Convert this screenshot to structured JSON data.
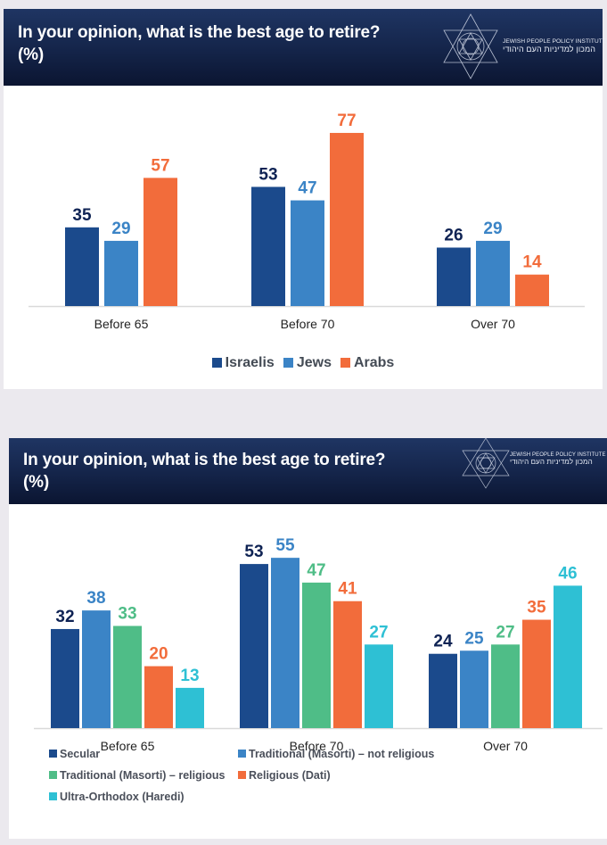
{
  "logo": {
    "name_en": "JEWISH PEOPLE POLICY INSTITUTE",
    "name_he": "המכון למדיניות העם היהודי"
  },
  "chart_data": [
    {
      "type": "bar",
      "title": "In your opinion, what is the best age to retire? (%)",
      "title_line1": "In your opinion, what is the best age to retire?",
      "title_line2": "(%)",
      "xlabel": "",
      "ylabel": "",
      "ylim": [
        0,
        77
      ],
      "grid": false,
      "legend_position": "bottom",
      "categories": [
        "Before 65",
        "Before 70",
        "Over 70"
      ],
      "series": [
        {
          "name": "Israelis",
          "color": "#1b4a8c",
          "label_color": "#0f2354",
          "values": [
            35,
            53,
            26
          ]
        },
        {
          "name": "Jews",
          "color": "#3b84c6",
          "label_color": "#3b84c6",
          "values": [
            29,
            47,
            29
          ]
        },
        {
          "name": "Arabs",
          "color": "#f26c3b",
          "label_color": "#f26c3b",
          "values": [
            57,
            77,
            14
          ]
        }
      ]
    },
    {
      "type": "bar",
      "title": "In your opinion, what is the best age to retire? (%)",
      "title_line1": "In your opinion, what is the best age to retire?",
      "title_line2": "(%)",
      "xlabel": "",
      "ylabel": "",
      "ylim": [
        0,
        55
      ],
      "grid": false,
      "legend_position": "bottom",
      "categories": [
        "Before 65",
        "Before 70",
        "Over 70"
      ],
      "series": [
        {
          "name": "Secular",
          "color": "#1b4a8c",
          "label_color": "#0f2354",
          "values": [
            32,
            53,
            24
          ]
        },
        {
          "name": "Traditional (Masorti) – not religious",
          "color": "#3b84c6",
          "label_color": "#3b84c6",
          "values": [
            38,
            55,
            25
          ]
        },
        {
          "name": "Traditional (Masorti) – religious",
          "color": "#4fbd87",
          "label_color": "#4fbd87",
          "values": [
            33,
            47,
            27
          ]
        },
        {
          "name": "Religious (Dati)",
          "color": "#f26c3b",
          "label_color": "#f26c3b",
          "values": [
            20,
            41,
            35
          ]
        },
        {
          "name": "Ultra-Orthodox (Haredi)",
          "color": "#2ec0d4",
          "label_color": "#2ec0d4",
          "values": [
            13,
            27,
            46
          ]
        }
      ]
    }
  ]
}
